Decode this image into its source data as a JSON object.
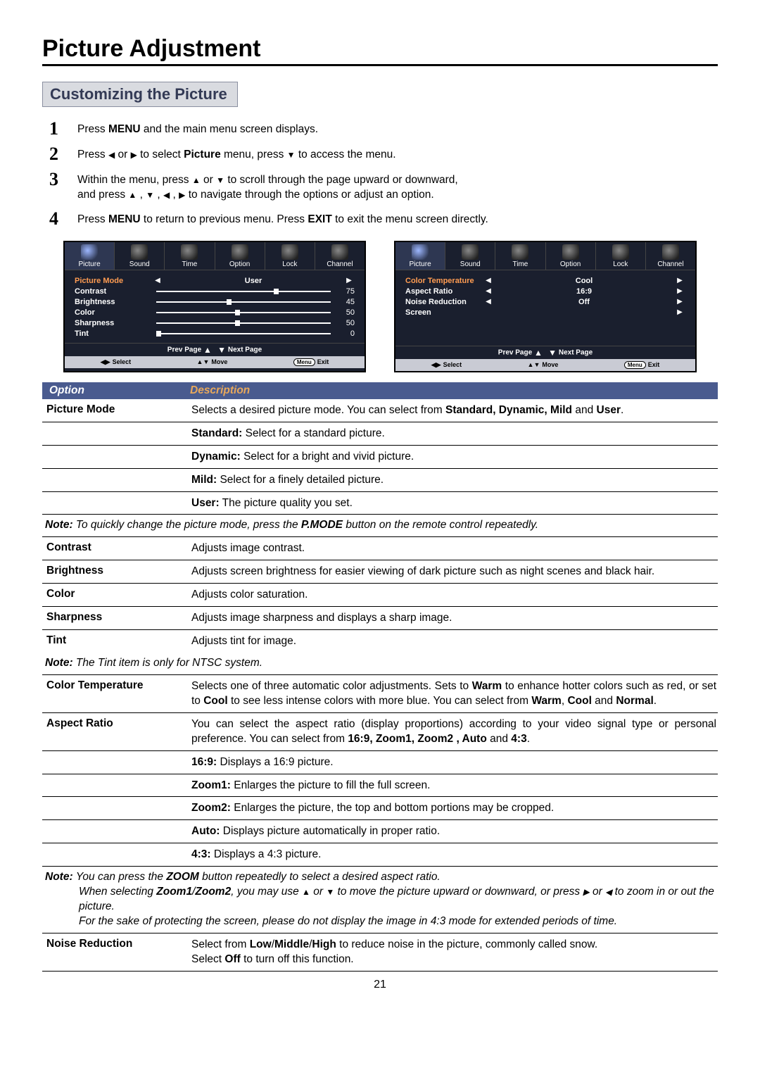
{
  "page": {
    "title": "Picture Adjustment",
    "subtitle": "Customizing the Picture",
    "number": "21"
  },
  "steps": {
    "s1": {
      "num": "1",
      "pre": "Press ",
      "b1": "MENU",
      "post": " and the main menu screen displays."
    },
    "s2": {
      "num": "2",
      "pre": "Press ",
      "mid1": " or ",
      "mid2": " to select ",
      "b1": "Picture",
      "mid3": " menu,  press ",
      "post": " to access the menu."
    },
    "s3": {
      "num": "3",
      "line1a": "Within the menu, press ",
      "line1b": " or ",
      "line1c": " to scroll through the page upward or downward,",
      "line2a": "and press ",
      "line2b": " to navigate through the options or adjust an option."
    },
    "s4": {
      "num": "4",
      "pre": "Press ",
      "b1": "MENU",
      "mid": " to return to previous menu. Press ",
      "b2": "EXIT",
      "post": " to exit the menu screen directly."
    }
  },
  "osd": {
    "tabs": [
      "Picture",
      "Sound",
      "Time",
      "Option",
      "Lock",
      "Channel"
    ],
    "foot": {
      "select": "Select",
      "move": "Move",
      "menu": "Menu",
      "exit": "Exit"
    },
    "navline": {
      "prev": "Prev  Page",
      "next": "Next  Page"
    },
    "panel1": {
      "rows": [
        {
          "label": "Picture Mode",
          "type": "word",
          "value": "User"
        },
        {
          "label": "Contrast",
          "type": "slider",
          "value": "75",
          "pos": 75
        },
        {
          "label": "Brightness",
          "type": "slider",
          "value": "45",
          "pos": 45
        },
        {
          "label": "Color",
          "type": "slider",
          "value": "50",
          "pos": 50
        },
        {
          "label": "Sharpness",
          "type": "slider",
          "value": "50",
          "pos": 50
        },
        {
          "label": "Tint",
          "type": "slider",
          "value": "0",
          "pos": 0
        }
      ]
    },
    "panel2": {
      "rows": [
        {
          "label": "Color Temperature",
          "type": "word",
          "value": "Cool"
        },
        {
          "label": "Aspect Ratio",
          "type": "word",
          "value": "16:9"
        },
        {
          "label": "Noise Reduction",
          "type": "word",
          "value": "Off"
        },
        {
          "label": "Screen",
          "type": "arrow"
        }
      ]
    }
  },
  "tableHeader": {
    "option": "Option",
    "desc": "Description"
  },
  "opts": {
    "pm": {
      "name": "Picture Mode",
      "desc_pre": "Selects a desired picture mode. You can select from ",
      "desc_b": "Standard, Dynamic, Mild",
      "desc_mid": " and ",
      "desc_b2": "User",
      "sub": [
        {
          "b": "Standard:",
          "t": " Select for a standard picture."
        },
        {
          "b": "Dynamic:",
          "t": " Select for a bright and vivid picture."
        },
        {
          "b": "Mild:",
          "t": " Select for a finely detailed picture."
        },
        {
          "b": "User:",
          "t": " The picture quality you set."
        }
      ],
      "note_pre": "To quickly change the picture mode, press the ",
      "note_b": "P.MODE",
      "note_post": " button on the remote control repeatedly."
    },
    "contrast": {
      "name": "Contrast",
      "desc": "Adjusts image contrast."
    },
    "brightness": {
      "name": "Brightness",
      "desc": "Adjusts screen brightness for easier viewing of dark picture such as night scenes and black hair."
    },
    "color": {
      "name": "Color",
      "desc": "Adjusts color saturation."
    },
    "sharpness": {
      "name": "Sharpness",
      "desc": "Adjusts image sharpness and displays a sharp image."
    },
    "tint": {
      "name": "Tint",
      "desc": "Adjusts tint for image.",
      "note": "The Tint item is only for NTSC system."
    },
    "ct": {
      "name": "Color Temperature",
      "d1": "Selects one of three automatic color adjustments.  Sets to ",
      "b1": "Warm",
      "d2": " to enhance hotter colors such as red,  or set to ",
      "b2": "Cool",
      "d3": " to see less intense colors with more blue.  You can select from ",
      "b3": "Warm",
      "d4": ", ",
      "b4": "Cool",
      "d5": " and ",
      "b5": "Normal",
      "d6": "."
    },
    "ar": {
      "name": "Aspect Ratio",
      "d1": "You can select the aspect ratio (display proportions) according to your video signal type or personal preference. You can select from ",
      "b1": "16:9,  Zoom1, Zoom2 , Auto",
      "d2": " and ",
      "b2": "4:3",
      "d3": ".",
      "sub": [
        {
          "b": "16:9:",
          "t": " Displays a 16:9 picture."
        },
        {
          "b": "Zoom1:",
          "t": " Enlarges the picture to fill the full screen."
        },
        {
          "b": "Zoom2:",
          "t": " Enlarges the picture, the top and bottom portions may be cropped."
        },
        {
          "b": "Auto:",
          "t": " Displays picture automatically in proper ratio."
        },
        {
          "b": "4:3:",
          "t": " Displays a 4:3 picture."
        }
      ],
      "note1_pre": "You can press the ",
      "note1_b": "ZOOM",
      "note1_post": " button repeatedly to select a desired aspect ratio.",
      "note2_pre": "When selecting ",
      "note2_b": "Zoom1",
      "note2_slash": "/",
      "note2_b2": "Zoom2",
      "note2_mid1": ", you may use ",
      "note2_mid2": " or ",
      "note2_mid3": " to move the picture upward or downward, or press ",
      "note2_mid4": " or ",
      "note2_mid5": " to zoom in or out the picture.",
      "note3": "For the sake of protecting the screen, please do not display the image in 4:3 mode for extended periods of time."
    },
    "nr": {
      "name": "Noise Reduction",
      "d1": "Select from ",
      "b1": "Low",
      "s1": "/",
      "b2": "Middle",
      "s2": "/",
      "b3": "High",
      "d2": " to reduce noise in the picture, commonly called snow.",
      "d3": "Select ",
      "b4": "Off",
      "d4": " to turn off this function."
    }
  }
}
